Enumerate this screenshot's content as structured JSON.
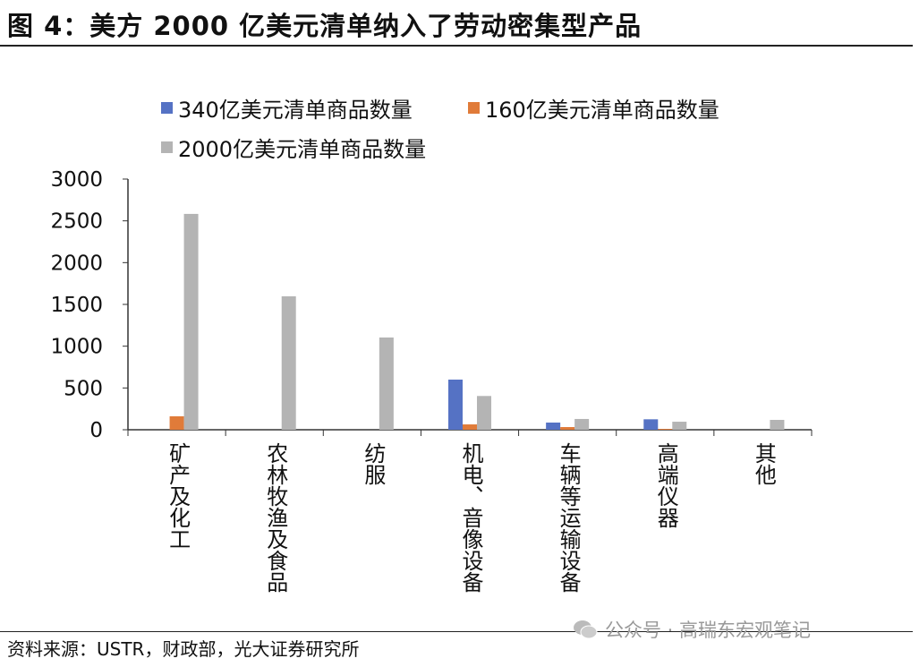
{
  "title": "图 4：美方 2000 亿美元清单纳入了劳动密集型产品",
  "source": "资料来源：USTR，财政部，光大证券研究所",
  "watermark": "公众号 · 高瑞东宏观笔记",
  "chart_data": {
    "type": "bar",
    "categories": [
      "矿产及化工",
      "农林牧渔及食品",
      "纺服",
      "机电、音像设备",
      "车辆等运输设备",
      "高端仪器",
      "其他"
    ],
    "series": [
      {
        "name": "340亿美元清单商品数量",
        "color": "#5572c4",
        "values": [
          0,
          0,
          0,
          600,
          86,
          125,
          0
        ]
      },
      {
        "name": "160亿美元清单商品数量",
        "color": "#e07b39",
        "values": [
          161,
          0,
          0,
          64,
          32,
          10,
          0
        ]
      },
      {
        "name": "2000亿美元清单商品数量",
        "color": "#b4b4b4",
        "values": [
          2583,
          1597,
          1104,
          404,
          129,
          96,
          118
        ]
      }
    ],
    "yticks": [
      "0",
      "500",
      "1000",
      "1500",
      "2000",
      "2500",
      "3000"
    ],
    "ylim": [
      0,
      3000
    ],
    "legend": "top",
    "grid": false
  }
}
